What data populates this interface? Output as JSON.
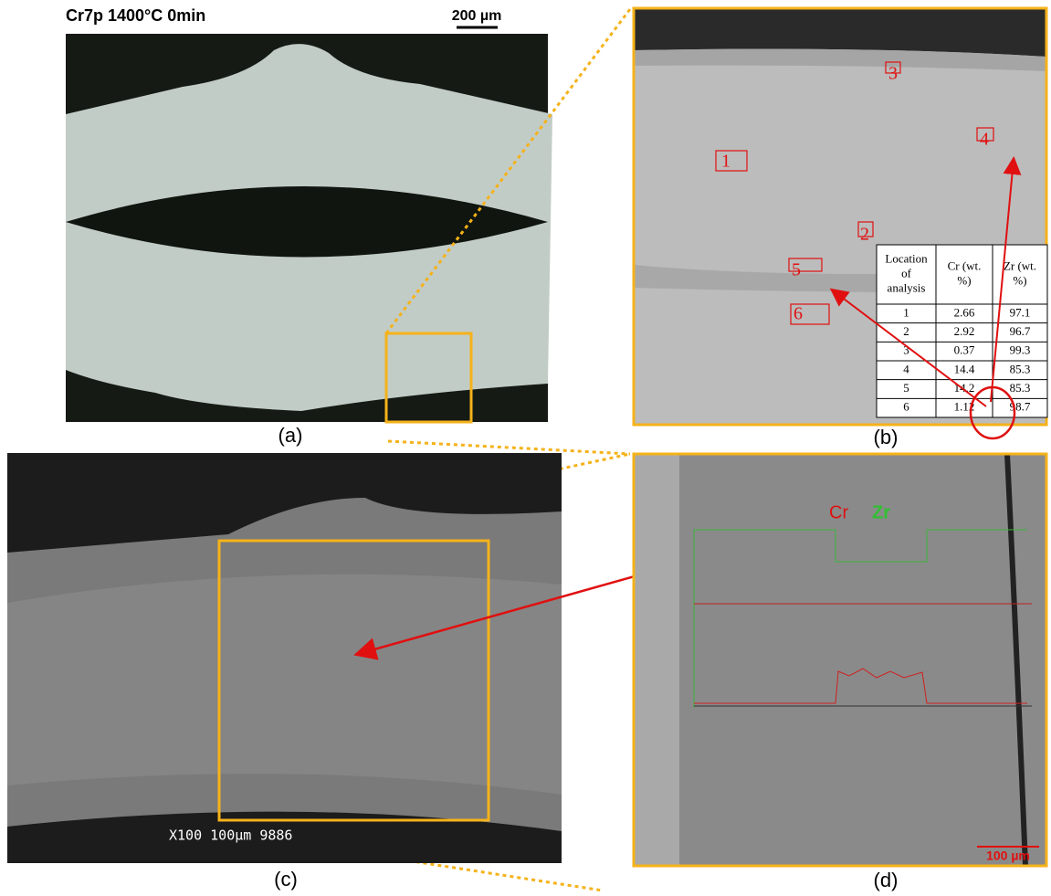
{
  "panel_a": {
    "title": "Cr7p 1400°C 0min",
    "scale_bar": "200 µm",
    "caption": "(a)"
  },
  "panel_b": {
    "caption": "(b)",
    "region_labels": [
      1,
      2,
      3,
      4,
      5,
      6
    ],
    "table": {
      "header": [
        "Location of analysis",
        "Cr (wt. %)",
        "Zr (wt. %)"
      ],
      "rows": [
        [
          1,
          2.66,
          97.1
        ],
        [
          2,
          2.92,
          96.7
        ],
        [
          3,
          0.37,
          99.3
        ],
        [
          4,
          14.4,
          85.3
        ],
        [
          5,
          14.2,
          85.3
        ],
        [
          6,
          1.12,
          98.7
        ]
      ]
    }
  },
  "panel_c": {
    "caption": "(c)",
    "sem_info": "X100  100µm  9886"
  },
  "panel_d": {
    "caption": "(d)",
    "legend": [
      "Cr",
      "Zr"
    ],
    "scale_bar": "100 µm"
  }
}
